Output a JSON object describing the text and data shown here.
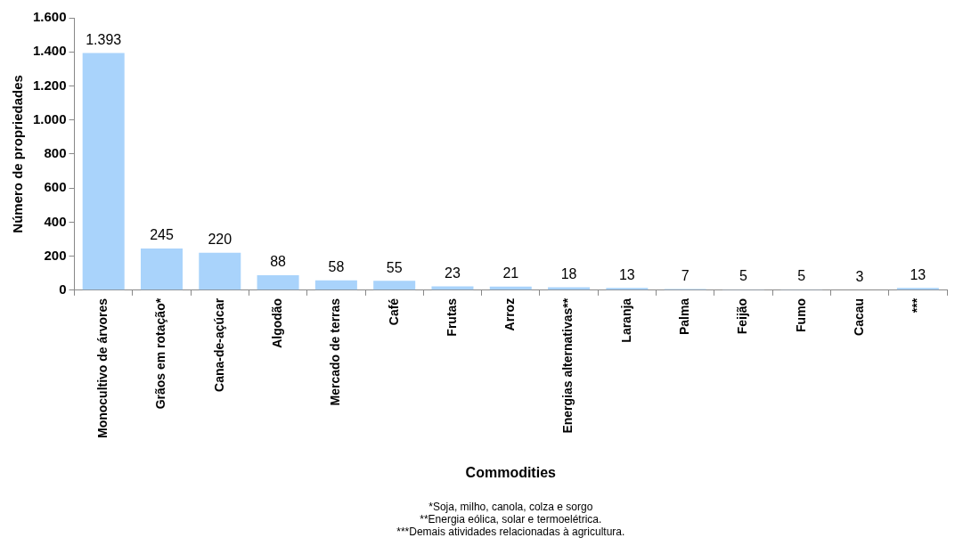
{
  "chart_data": {
    "type": "bar",
    "xlabel": "Commodities",
    "ylabel": "Número de propriedades",
    "categories": [
      "Monocultivo de árvores",
      "Grãos em rotação*",
      "Cana-de-açúcar",
      "Algodão",
      "Mercado de terras",
      "Café",
      "Frutas",
      "Arroz",
      "Energias alternativas**",
      "Laranja",
      "Palma",
      "Feijão",
      "Fumo",
      "Cacau",
      "***"
    ],
    "values": [
      1393,
      245,
      220,
      88,
      58,
      55,
      23,
      21,
      18,
      13,
      7,
      5,
      5,
      3,
      13
    ],
    "value_labels": [
      "1.393",
      "245",
      "220",
      "88",
      "58",
      "55",
      "23",
      "21",
      "18",
      "13",
      "7",
      "5",
      "5",
      "3",
      "13"
    ],
    "color": "#a9d3fb",
    "ylim": [
      0,
      1600
    ],
    "yticks": [
      {
        "value": 0,
        "label": "0"
      },
      {
        "value": 200,
        "label": "200"
      },
      {
        "value": 400,
        "label": "400"
      },
      {
        "value": 600,
        "label": "600"
      },
      {
        "value": 800,
        "label": "800"
      },
      {
        "value": 1000,
        "label": "1.000"
      },
      {
        "value": 1200,
        "label": "1.200"
      },
      {
        "value": 1400,
        "label": "1.400"
      },
      {
        "value": 1600,
        "label": "1.600"
      }
    ],
    "grid": false,
    "legend": false,
    "annotations": [
      "*Soja, milho, canola, colza e sorgo",
      "**Energia eólica, solar e termoelétrica.",
      "***Demais atividades relacionadas à agricultura."
    ]
  }
}
